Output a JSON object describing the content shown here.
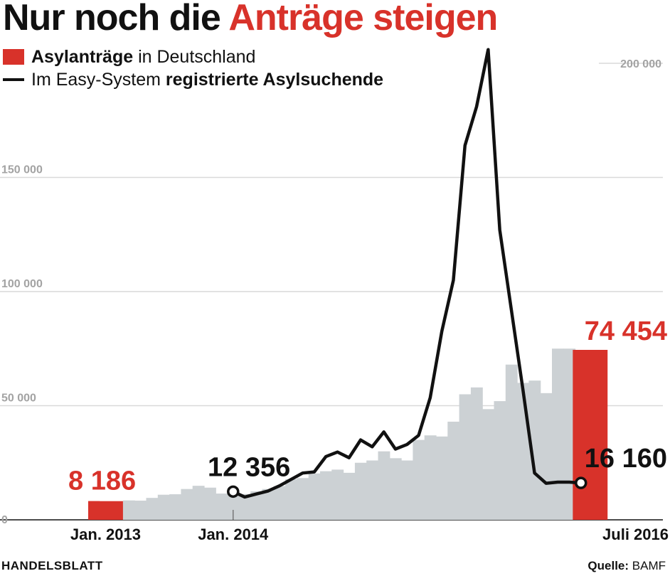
{
  "title": {
    "part1": "Nur noch die ",
    "part2": "Anträge steigen"
  },
  "legend": {
    "bar_bold": "Asylanträge",
    "bar_rest": " in Deutschland",
    "line_rest": "Im Easy-System ",
    "line_bold": "registrierte Asylsuchende"
  },
  "footer": {
    "brand": "HANDELSBLATT",
    "source_label": "Quelle:",
    "source_value": " BAMF"
  },
  "colors": {
    "accent": "#d8322a",
    "bar": "#ccd1d4",
    "line": "#111111",
    "grid": "#d9d9d9",
    "tick": "#a3a3a3"
  },
  "chart_data": {
    "type": "bar",
    "ylim": [
      0,
      200000
    ],
    "yticks": [
      {
        "value": 0,
        "label": "0"
      },
      {
        "value": 50000,
        "label": "50 000"
      },
      {
        "value": 100000,
        "label": "100 000"
      },
      {
        "value": 150000,
        "label": "150 000"
      },
      {
        "value": 200000,
        "label": "200 000"
      }
    ],
    "months": [
      "2013-01",
      "2013-02",
      "2013-03",
      "2013-04",
      "2013-05",
      "2013-06",
      "2013-07",
      "2013-08",
      "2013-09",
      "2013-10",
      "2013-11",
      "2013-12",
      "2014-01",
      "2014-02",
      "2014-03",
      "2014-04",
      "2014-05",
      "2014-06",
      "2014-07",
      "2014-08",
      "2014-09",
      "2014-10",
      "2014-11",
      "2014-12",
      "2015-01",
      "2015-02",
      "2015-03",
      "2015-04",
      "2015-05",
      "2015-06",
      "2015-07",
      "2015-08",
      "2015-09",
      "2015-10",
      "2015-11",
      "2015-12",
      "2016-01",
      "2016-02",
      "2016-03",
      "2016-04",
      "2016-05",
      "2016-06",
      "2016-07"
    ],
    "x_tick_labels": [
      {
        "month": "2013-01",
        "label": "Jan. 2013"
      },
      {
        "month": "2014-01",
        "label": "Jan. 2014"
      },
      {
        "month": "2016-07",
        "label": "Juli 2016"
      }
    ],
    "series": [
      {
        "name": "Asylanträge in Deutschland",
        "kind": "bar",
        "values": [
          8186,
          6600,
          6200,
          8500,
          8400,
          9600,
          11000,
          11200,
          13500,
          14900,
          14100,
          11500,
          12800,
          11300,
          12500,
          13500,
          14800,
          17800,
          18300,
          20300,
          21300,
          22000,
          20600,
          25000,
          26000,
          30000,
          27000,
          26000,
          35000,
          37000,
          36500,
          43000,
          55000,
          58000,
          48500,
          52000,
          68000,
          60000,
          61000,
          55500,
          75000,
          75000,
          74454
        ]
      },
      {
        "name": "Im Easy-System registrierte Asylsuchende",
        "kind": "line",
        "start_month": "2014-01",
        "values": [
          12356,
          10000,
          11300,
          12600,
          14900,
          17700,
          20500,
          21000,
          27700,
          29700,
          27200,
          35000,
          32000,
          38500,
          31000,
          33000,
          37000,
          53500,
          82500,
          105000,
          164000,
          181000,
          206000,
          127000,
          92000,
          57000,
          20500,
          16000,
          16500,
          16500,
          16160
        ]
      }
    ],
    "annotations": [
      {
        "month": "2013-01",
        "value": 8186,
        "label": "8 186"
      },
      {
        "month": "2014-01",
        "value": 12356,
        "label": "12 356"
      },
      {
        "month": "2016-07",
        "value": 74454,
        "label": "74 454"
      },
      {
        "month": "2016-07",
        "value": 16160,
        "label": "16 160"
      }
    ]
  }
}
